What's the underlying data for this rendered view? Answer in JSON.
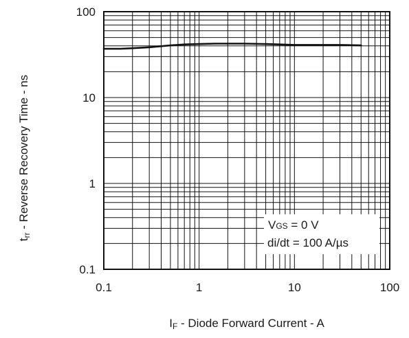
{
  "chart_data": {
    "type": "line",
    "xscale": "log",
    "yscale": "log",
    "xlim": [
      0.1,
      100
    ],
    "ylim": [
      0.1,
      100
    ],
    "grid": true,
    "xticks": [
      "0.1",
      "1",
      "10",
      "100"
    ],
    "yticks": [
      "0.1",
      "1",
      "10",
      "100"
    ],
    "xlabel": {
      "main": "I",
      "sub": "F",
      "rest": " - Diode Forward Current - A"
    },
    "ylabel": {
      "main": "t",
      "sub": "rr",
      "rest": " - Reverse Recovery Time - ns"
    },
    "annotation": {
      "line1": {
        "main": "V",
        "sub": "GS",
        "rest": " = 0 V"
      },
      "line2": "di/dt = 100 A/µs"
    },
    "series": [
      {
        "x": [
          0.1,
          0.15,
          0.2,
          0.3,
          0.5,
          0.7,
          1,
          1.5,
          2,
          3,
          5,
          7,
          10,
          15,
          20,
          30,
          50
        ],
        "y": [
          37,
          37,
          37.5,
          38.5,
          40.5,
          41.5,
          42,
          42.5,
          42.5,
          42.5,
          42,
          41.5,
          41,
          41,
          41,
          41,
          40.5
        ]
      }
    ],
    "colors": {
      "line": "#111111",
      "grid": "#111111",
      "frame": "#111111"
    }
  }
}
